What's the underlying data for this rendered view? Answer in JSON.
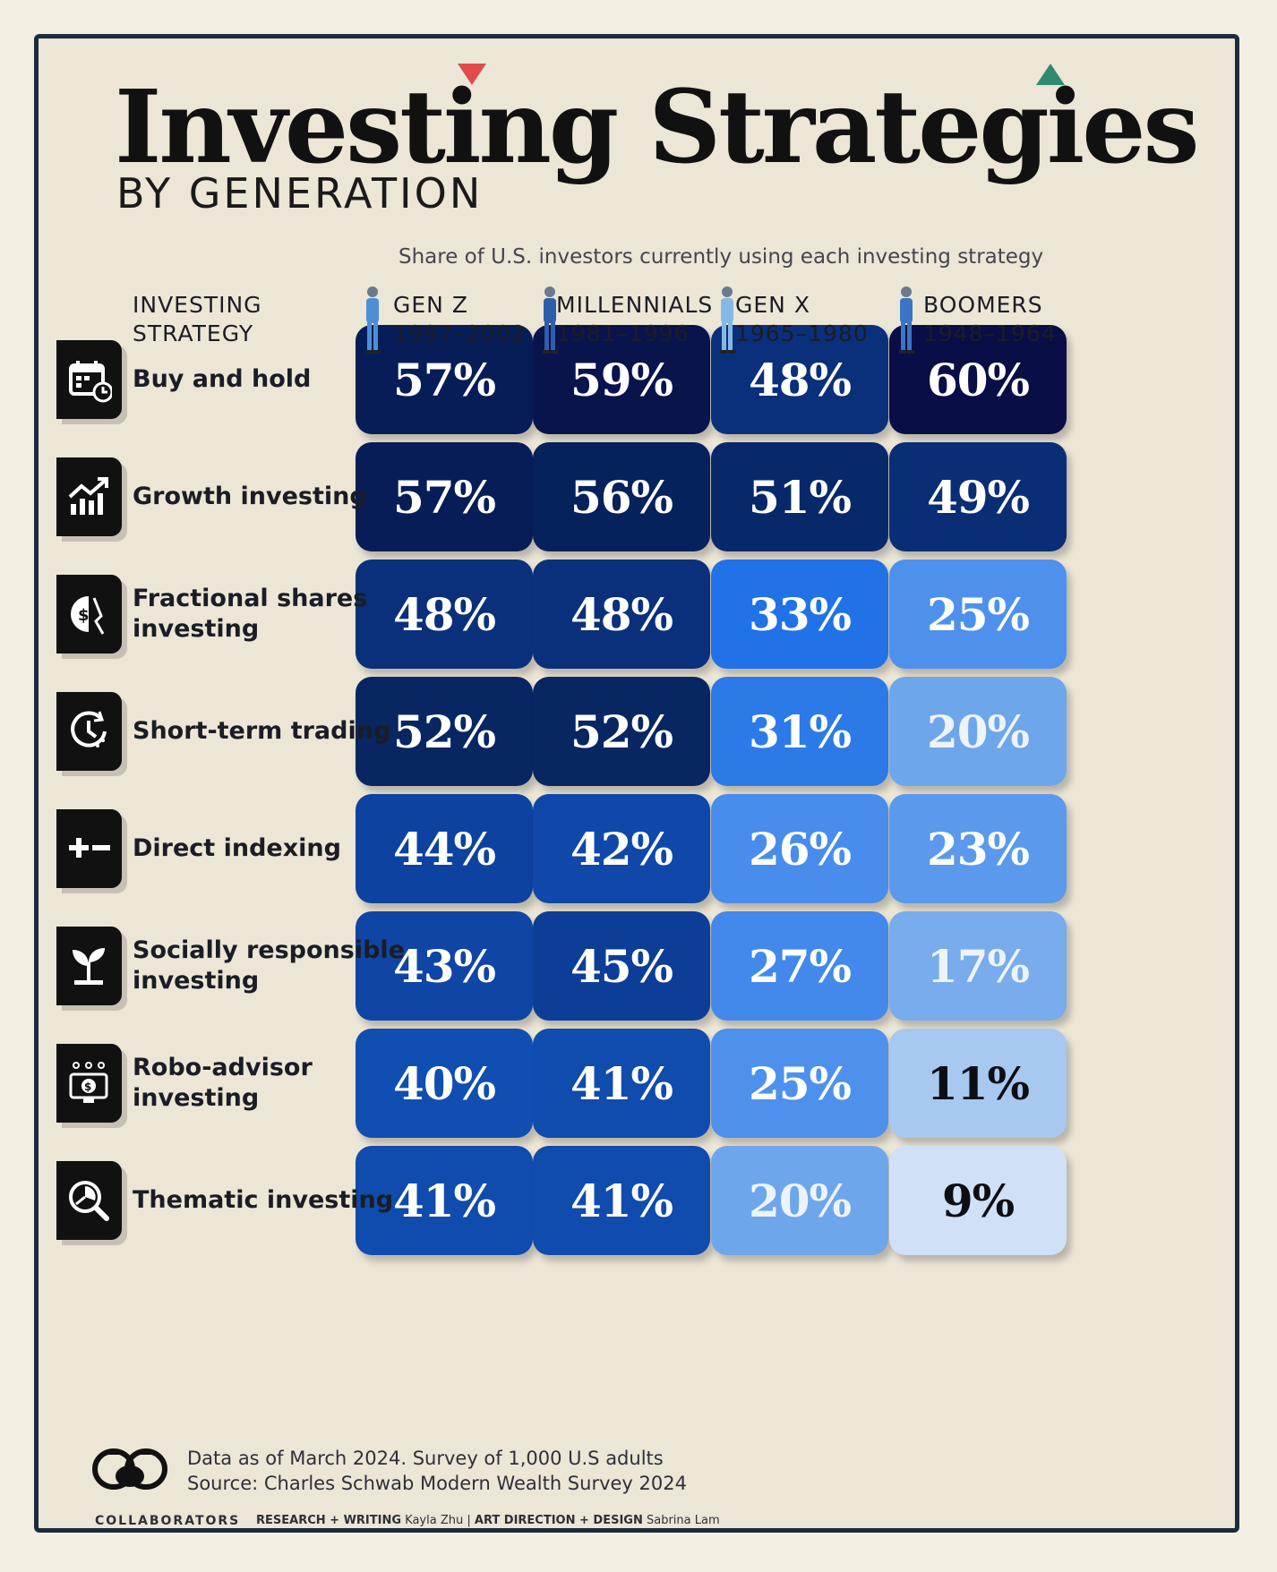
{
  "title": "Investing Strategies",
  "subtitle": "BY GENERATION",
  "colors": {
    "triangle_down": "#e14b4b",
    "triangle_up": "#2f8a6f",
    "frame": "#1f2a3c",
    "rule": "#3aa088"
  },
  "chart_data": {
    "type": "heatmap",
    "description": "Share of U.S. investors currently using each investing strategy",
    "row_header": [
      "INVESTING",
      "STRATEGY"
    ],
    "unit": "%",
    "columns": [
      {
        "name": "GEN Z",
        "years": "1997–2002"
      },
      {
        "name": "MILLENNIALS",
        "years": "1981–1996"
      },
      {
        "name": "GEN X",
        "years": "1965–1980"
      },
      {
        "name": "BOOMERS",
        "years": "1948–1964"
      }
    ],
    "rows": [
      {
        "strategy": [
          "Buy and hold"
        ],
        "icon": "calendar-clock-icon",
        "values": [
          57,
          59,
          48,
          60
        ]
      },
      {
        "strategy": [
          "Growth investing"
        ],
        "icon": "growth-chart-icon",
        "values": [
          57,
          56,
          51,
          49
        ]
      },
      {
        "strategy": [
          "Fractional shares",
          "investing"
        ],
        "icon": "fractional-coin-icon",
        "values": [
          48,
          48,
          33,
          25
        ]
      },
      {
        "strategy": [
          "Short-term trading"
        ],
        "icon": "clock-refresh-icon",
        "values": [
          52,
          52,
          31,
          20
        ]
      },
      {
        "strategy": [
          "Direct indexing"
        ],
        "icon": "plus-minus-icon",
        "values": [
          44,
          42,
          26,
          23
        ]
      },
      {
        "strategy": [
          "Socially responsible",
          "investing"
        ],
        "icon": "sprout-icon",
        "values": [
          43,
          45,
          27,
          17
        ]
      },
      {
        "strategy": [
          "Robo-advisor",
          "investing"
        ],
        "icon": "robo-monitor-icon",
        "values": [
          40,
          41,
          25,
          11
        ]
      },
      {
        "strategy": [
          "Thematic investing"
        ],
        "icon": "magnifier-pie-icon",
        "values": [
          41,
          41,
          20,
          9
        ]
      }
    ]
  },
  "footer": {
    "note": "Data as of March 2024. Survey of 1,000 U.S adults",
    "source": "Source: Charles Schwab Modern Wealth Survey 2024",
    "collaborators": "COLLABORATORS",
    "research_label": "RESEARCH + WRITING",
    "research_name": "Kayla Zhu",
    "design_label": "ART DIRECTION + DESIGN",
    "design_name": "Sabrina Lam"
  }
}
